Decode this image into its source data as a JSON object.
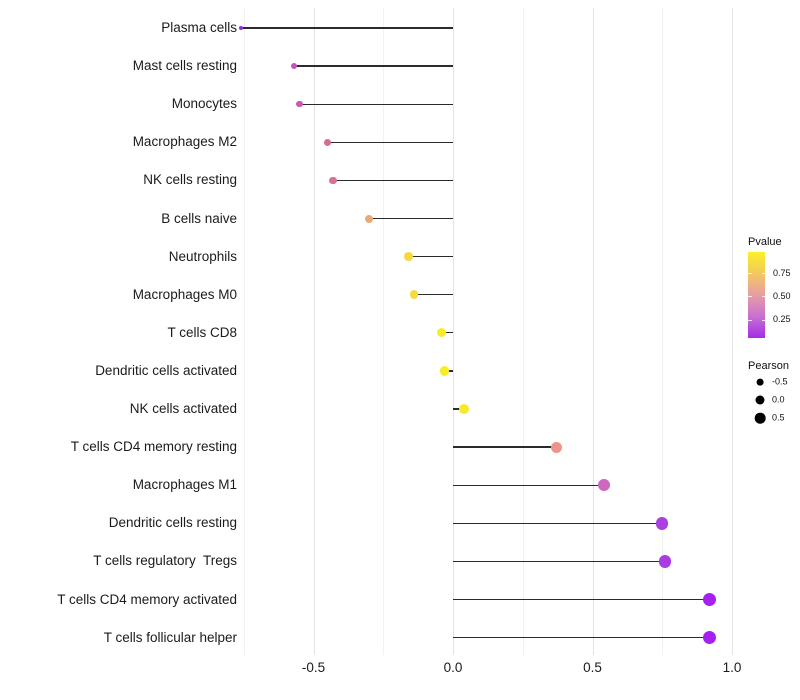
{
  "chart_data": {
    "type": "scatter",
    "variant": "lollipop",
    "orientation": "horizontal",
    "title": "",
    "xlabel": "",
    "ylabel": "",
    "x_axis": {
      "ticks": [
        -0.5,
        0.0,
        0.5,
        1.0
      ],
      "tick_labels": [
        "-0.5",
        "0.0",
        "0.5",
        "1.0"
      ],
      "minor_ticks": [
        -0.75,
        -0.25,
        0.25,
        0.75
      ],
      "range": [
        -0.84,
        1.04
      ],
      "grid": true
    },
    "categories": [
      "Plasma cells",
      "Mast cells resting",
      "Monocytes",
      "Macrophages M2",
      "NK cells resting",
      "B cells naive",
      "Neutrophils",
      "Macrophages M0",
      "T cells CD8",
      "Dendritic cells activated",
      "NK cells activated",
      "T cells CD4 memory resting",
      "Macrophages M1",
      "Dendritic cells resting",
      "T cells regulatory  Tregs",
      "T cells CD4 memory activated",
      "T cells follicular helper"
    ],
    "points": [
      {
        "category": "Plasma cells",
        "pearson": -0.76,
        "pvalue": 0.06,
        "color": "#9c2cd8"
      },
      {
        "category": "Mast cells resting",
        "pearson": -0.57,
        "pvalue": 0.25,
        "color": "#c355b8"
      },
      {
        "category": "Monocytes",
        "pearson": -0.55,
        "pvalue": 0.27,
        "color": "#c55cb0"
      },
      {
        "category": "Macrophages M2",
        "pearson": -0.45,
        "pvalue": 0.4,
        "color": "#d66c90"
      },
      {
        "category": "NK cells resting",
        "pearson": -0.43,
        "pvalue": 0.42,
        "color": "#d87192"
      },
      {
        "category": "B cells naive",
        "pearson": -0.3,
        "pvalue": 0.64,
        "color": "#eaaa75"
      },
      {
        "category": "Neutrophils",
        "pearson": -0.16,
        "pvalue": 0.83,
        "color": "#f5d844"
      },
      {
        "category": "Macrophages M0",
        "pearson": -0.14,
        "pvalue": 0.84,
        "color": "#f5da42"
      },
      {
        "category": "T cells CD8",
        "pearson": -0.04,
        "pvalue": 0.93,
        "color": "#f8ec28"
      },
      {
        "category": "Dendritic cells activated",
        "pearson": -0.03,
        "pvalue": 0.93,
        "color": "#f8ed26"
      },
      {
        "category": "NK cells activated",
        "pearson": 0.04,
        "pvalue": 0.91,
        "color": "#f7e92c"
      },
      {
        "category": "T cells CD4 memory resting",
        "pearson": 0.37,
        "pvalue": 0.55,
        "color": "#ec938c"
      },
      {
        "category": "Macrophages M1",
        "pearson": 0.54,
        "pvalue": 0.31,
        "color": "#ce68be"
      },
      {
        "category": "Dendritic cells resting",
        "pearson": 0.75,
        "pvalue": 0.13,
        "color": "#ab3fe2"
      },
      {
        "category": "T cells regulatory  Tregs",
        "pearson": 0.76,
        "pvalue": 0.12,
        "color": "#aa3ce4"
      },
      {
        "category": "T cells CD4 memory activated",
        "pearson": 0.92,
        "pvalue": 0.05,
        "color": "#a621f0"
      },
      {
        "category": "T cells follicular helper",
        "pearson": 0.92,
        "pvalue": 0.05,
        "color": "#a621f0"
      }
    ],
    "legends": {
      "pvalue": {
        "title": "Pvalue",
        "tick_values": [
          0.75,
          0.5,
          0.25
        ],
        "tick_labels": [
          "0.75",
          "0.50",
          "0.25"
        ],
        "domain_top": 0.98,
        "domain_bottom": 0.05,
        "gradient_top_to_bottom": [
          "#faf028",
          "#f4cd56",
          "#e89da4",
          "#c66fd2",
          "#a52be8"
        ]
      },
      "pearson": {
        "title": "Pearson",
        "entries": [
          {
            "label": "-0.5",
            "pearson": -0.5
          },
          {
            "label": "0.0",
            "pearson": 0.0
          },
          {
            "label": "0.5",
            "pearson": 0.5
          }
        ]
      }
    }
  }
}
